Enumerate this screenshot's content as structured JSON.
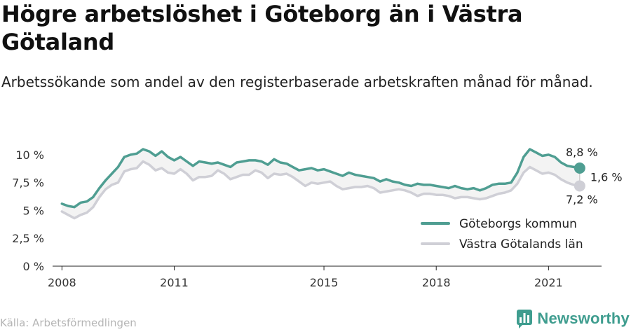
{
  "title": "Högre arbetslöshet i Göteborg än i Västra Götaland",
  "subtitle": "Arbetssökande som andel av den registerbaserade arbetskraften månad för månad.",
  "source": "Källa: Arbetsförmedlingen",
  "brand": "Newsworthy",
  "colors": {
    "goteborg": "#4f9e92",
    "vastra": "#cfcfd6",
    "band": "#f3f3f3",
    "brand": "#3f9d8f"
  },
  "annotations": {
    "goteborg_last": "8,8 %",
    "vastra_last": "7,2 %",
    "difference": "1,6 %"
  },
  "chart_data": {
    "type": "line",
    "title": "Högre arbetslöshet i Göteborg än i Västra Götaland",
    "subtitle": "Arbetssökande som andel av den registerbaserade arbetskraften månad för månad.",
    "x_ticks": [
      "2008",
      "2011",
      "2015",
      "2018",
      "2021"
    ],
    "y_ticks": [
      "0 %",
      "2,5 %",
      "5 %",
      "7,5 %",
      "10 %"
    ],
    "ylim": [
      0,
      11
    ],
    "xlim": [
      "2007-10",
      "2022-06"
    ],
    "grid": false,
    "legend_position": "bottom-right",
    "series": [
      {
        "name": "Göteborgs kommun",
        "points": [
          [
            "2008-01",
            5.6
          ],
          [
            "2008-03",
            5.4
          ],
          [
            "2008-05",
            5.3
          ],
          [
            "2008-07",
            5.7
          ],
          [
            "2008-09",
            5.8
          ],
          [
            "2008-11",
            6.2
          ],
          [
            "2009-01",
            7.0
          ],
          [
            "2009-03",
            7.7
          ],
          [
            "2009-05",
            8.3
          ],
          [
            "2009-07",
            8.9
          ],
          [
            "2009-09",
            9.8
          ],
          [
            "2009-11",
            10.0
          ],
          [
            "2010-01",
            10.1
          ],
          [
            "2010-03",
            10.5
          ],
          [
            "2010-05",
            10.3
          ],
          [
            "2010-07",
            9.9
          ],
          [
            "2010-09",
            10.3
          ],
          [
            "2010-11",
            9.8
          ],
          [
            "2011-01",
            9.5
          ],
          [
            "2011-03",
            9.8
          ],
          [
            "2011-05",
            9.4
          ],
          [
            "2011-07",
            9.0
          ],
          [
            "2011-09",
            9.4
          ],
          [
            "2011-11",
            9.3
          ],
          [
            "2012-01",
            9.2
          ],
          [
            "2012-03",
            9.3
          ],
          [
            "2012-05",
            9.1
          ],
          [
            "2012-07",
            8.9
          ],
          [
            "2012-09",
            9.3
          ],
          [
            "2012-11",
            9.4
          ],
          [
            "2013-01",
            9.5
          ],
          [
            "2013-03",
            9.5
          ],
          [
            "2013-05",
            9.4
          ],
          [
            "2013-07",
            9.1
          ],
          [
            "2013-09",
            9.6
          ],
          [
            "2013-11",
            9.3
          ],
          [
            "2014-01",
            9.2
          ],
          [
            "2014-03",
            8.9
          ],
          [
            "2014-05",
            8.6
          ],
          [
            "2014-07",
            8.7
          ],
          [
            "2014-09",
            8.8
          ],
          [
            "2014-11",
            8.6
          ],
          [
            "2015-01",
            8.7
          ],
          [
            "2015-03",
            8.5
          ],
          [
            "2015-05",
            8.3
          ],
          [
            "2015-07",
            8.1
          ],
          [
            "2015-09",
            8.4
          ],
          [
            "2015-11",
            8.2
          ],
          [
            "2016-01",
            8.1
          ],
          [
            "2016-03",
            8.0
          ],
          [
            "2016-05",
            7.9
          ],
          [
            "2016-07",
            7.6
          ],
          [
            "2016-09",
            7.8
          ],
          [
            "2016-11",
            7.6
          ],
          [
            "2017-01",
            7.5
          ],
          [
            "2017-03",
            7.3
          ],
          [
            "2017-05",
            7.2
          ],
          [
            "2017-07",
            7.4
          ],
          [
            "2017-09",
            7.3
          ],
          [
            "2017-11",
            7.3
          ],
          [
            "2018-01",
            7.2
          ],
          [
            "2018-03",
            7.1
          ],
          [
            "2018-05",
            7.0
          ],
          [
            "2018-07",
            7.2
          ],
          [
            "2018-09",
            7.0
          ],
          [
            "2018-11",
            6.9
          ],
          [
            "2019-01",
            7.0
          ],
          [
            "2019-03",
            6.8
          ],
          [
            "2019-05",
            7.0
          ],
          [
            "2019-07",
            7.3
          ],
          [
            "2019-09",
            7.4
          ],
          [
            "2019-11",
            7.4
          ],
          [
            "2020-01",
            7.5
          ],
          [
            "2020-03",
            8.4
          ],
          [
            "2020-05",
            9.8
          ],
          [
            "2020-07",
            10.5
          ],
          [
            "2020-09",
            10.2
          ],
          [
            "2020-11",
            9.9
          ],
          [
            "2021-01",
            10.0
          ],
          [
            "2021-03",
            9.8
          ],
          [
            "2021-05",
            9.3
          ],
          [
            "2021-07",
            9.0
          ],
          [
            "2021-09",
            8.9
          ],
          [
            "2021-11",
            8.8
          ]
        ]
      },
      {
        "name": "Västra Götalands län",
        "points": [
          [
            "2008-01",
            4.9
          ],
          [
            "2008-03",
            4.6
          ],
          [
            "2008-05",
            4.3
          ],
          [
            "2008-07",
            4.6
          ],
          [
            "2008-09",
            4.8
          ],
          [
            "2008-11",
            5.3
          ],
          [
            "2009-01",
            6.2
          ],
          [
            "2009-03",
            6.9
          ],
          [
            "2009-05",
            7.3
          ],
          [
            "2009-07",
            7.5
          ],
          [
            "2009-09",
            8.5
          ],
          [
            "2009-11",
            8.7
          ],
          [
            "2010-01",
            8.8
          ],
          [
            "2010-03",
            9.4
          ],
          [
            "2010-05",
            9.1
          ],
          [
            "2010-07",
            8.6
          ],
          [
            "2010-09",
            8.8
          ],
          [
            "2010-11",
            8.4
          ],
          [
            "2011-01",
            8.3
          ],
          [
            "2011-03",
            8.7
          ],
          [
            "2011-05",
            8.3
          ],
          [
            "2011-07",
            7.7
          ],
          [
            "2011-09",
            8.0
          ],
          [
            "2011-11",
            8.0
          ],
          [
            "2012-01",
            8.1
          ],
          [
            "2012-03",
            8.6
          ],
          [
            "2012-05",
            8.3
          ],
          [
            "2012-07",
            7.8
          ],
          [
            "2012-09",
            8.0
          ],
          [
            "2012-11",
            8.2
          ],
          [
            "2013-01",
            8.2
          ],
          [
            "2013-03",
            8.6
          ],
          [
            "2013-05",
            8.4
          ],
          [
            "2013-07",
            7.9
          ],
          [
            "2013-09",
            8.3
          ],
          [
            "2013-11",
            8.2
          ],
          [
            "2014-01",
            8.3
          ],
          [
            "2014-03",
            8.0
          ],
          [
            "2014-05",
            7.6
          ],
          [
            "2014-07",
            7.2
          ],
          [
            "2014-09",
            7.5
          ],
          [
            "2014-11",
            7.4
          ],
          [
            "2015-01",
            7.5
          ],
          [
            "2015-03",
            7.6
          ],
          [
            "2015-05",
            7.2
          ],
          [
            "2015-07",
            6.9
          ],
          [
            "2015-09",
            7.0
          ],
          [
            "2015-11",
            7.1
          ],
          [
            "2016-01",
            7.1
          ],
          [
            "2016-03",
            7.2
          ],
          [
            "2016-05",
            7.0
          ],
          [
            "2016-07",
            6.6
          ],
          [
            "2016-09",
            6.7
          ],
          [
            "2016-11",
            6.8
          ],
          [
            "2017-01",
            6.9
          ],
          [
            "2017-03",
            6.8
          ],
          [
            "2017-05",
            6.6
          ],
          [
            "2017-07",
            6.3
          ],
          [
            "2017-09",
            6.5
          ],
          [
            "2017-11",
            6.5
          ],
          [
            "2018-01",
            6.4
          ],
          [
            "2018-03",
            6.4
          ],
          [
            "2018-05",
            6.3
          ],
          [
            "2018-07",
            6.1
          ],
          [
            "2018-09",
            6.2
          ],
          [
            "2018-11",
            6.2
          ],
          [
            "2019-01",
            6.1
          ],
          [
            "2019-03",
            6.0
          ],
          [
            "2019-05",
            6.1
          ],
          [
            "2019-07",
            6.3
          ],
          [
            "2019-09",
            6.5
          ],
          [
            "2019-11",
            6.6
          ],
          [
            "2020-01",
            6.8
          ],
          [
            "2020-03",
            7.4
          ],
          [
            "2020-05",
            8.4
          ],
          [
            "2020-07",
            8.9
          ],
          [
            "2020-09",
            8.6
          ],
          [
            "2020-11",
            8.3
          ],
          [
            "2021-01",
            8.4
          ],
          [
            "2021-03",
            8.2
          ],
          [
            "2021-05",
            7.8
          ],
          [
            "2021-07",
            7.5
          ],
          [
            "2021-09",
            7.3
          ],
          [
            "2021-11",
            7.2
          ]
        ]
      }
    ]
  }
}
